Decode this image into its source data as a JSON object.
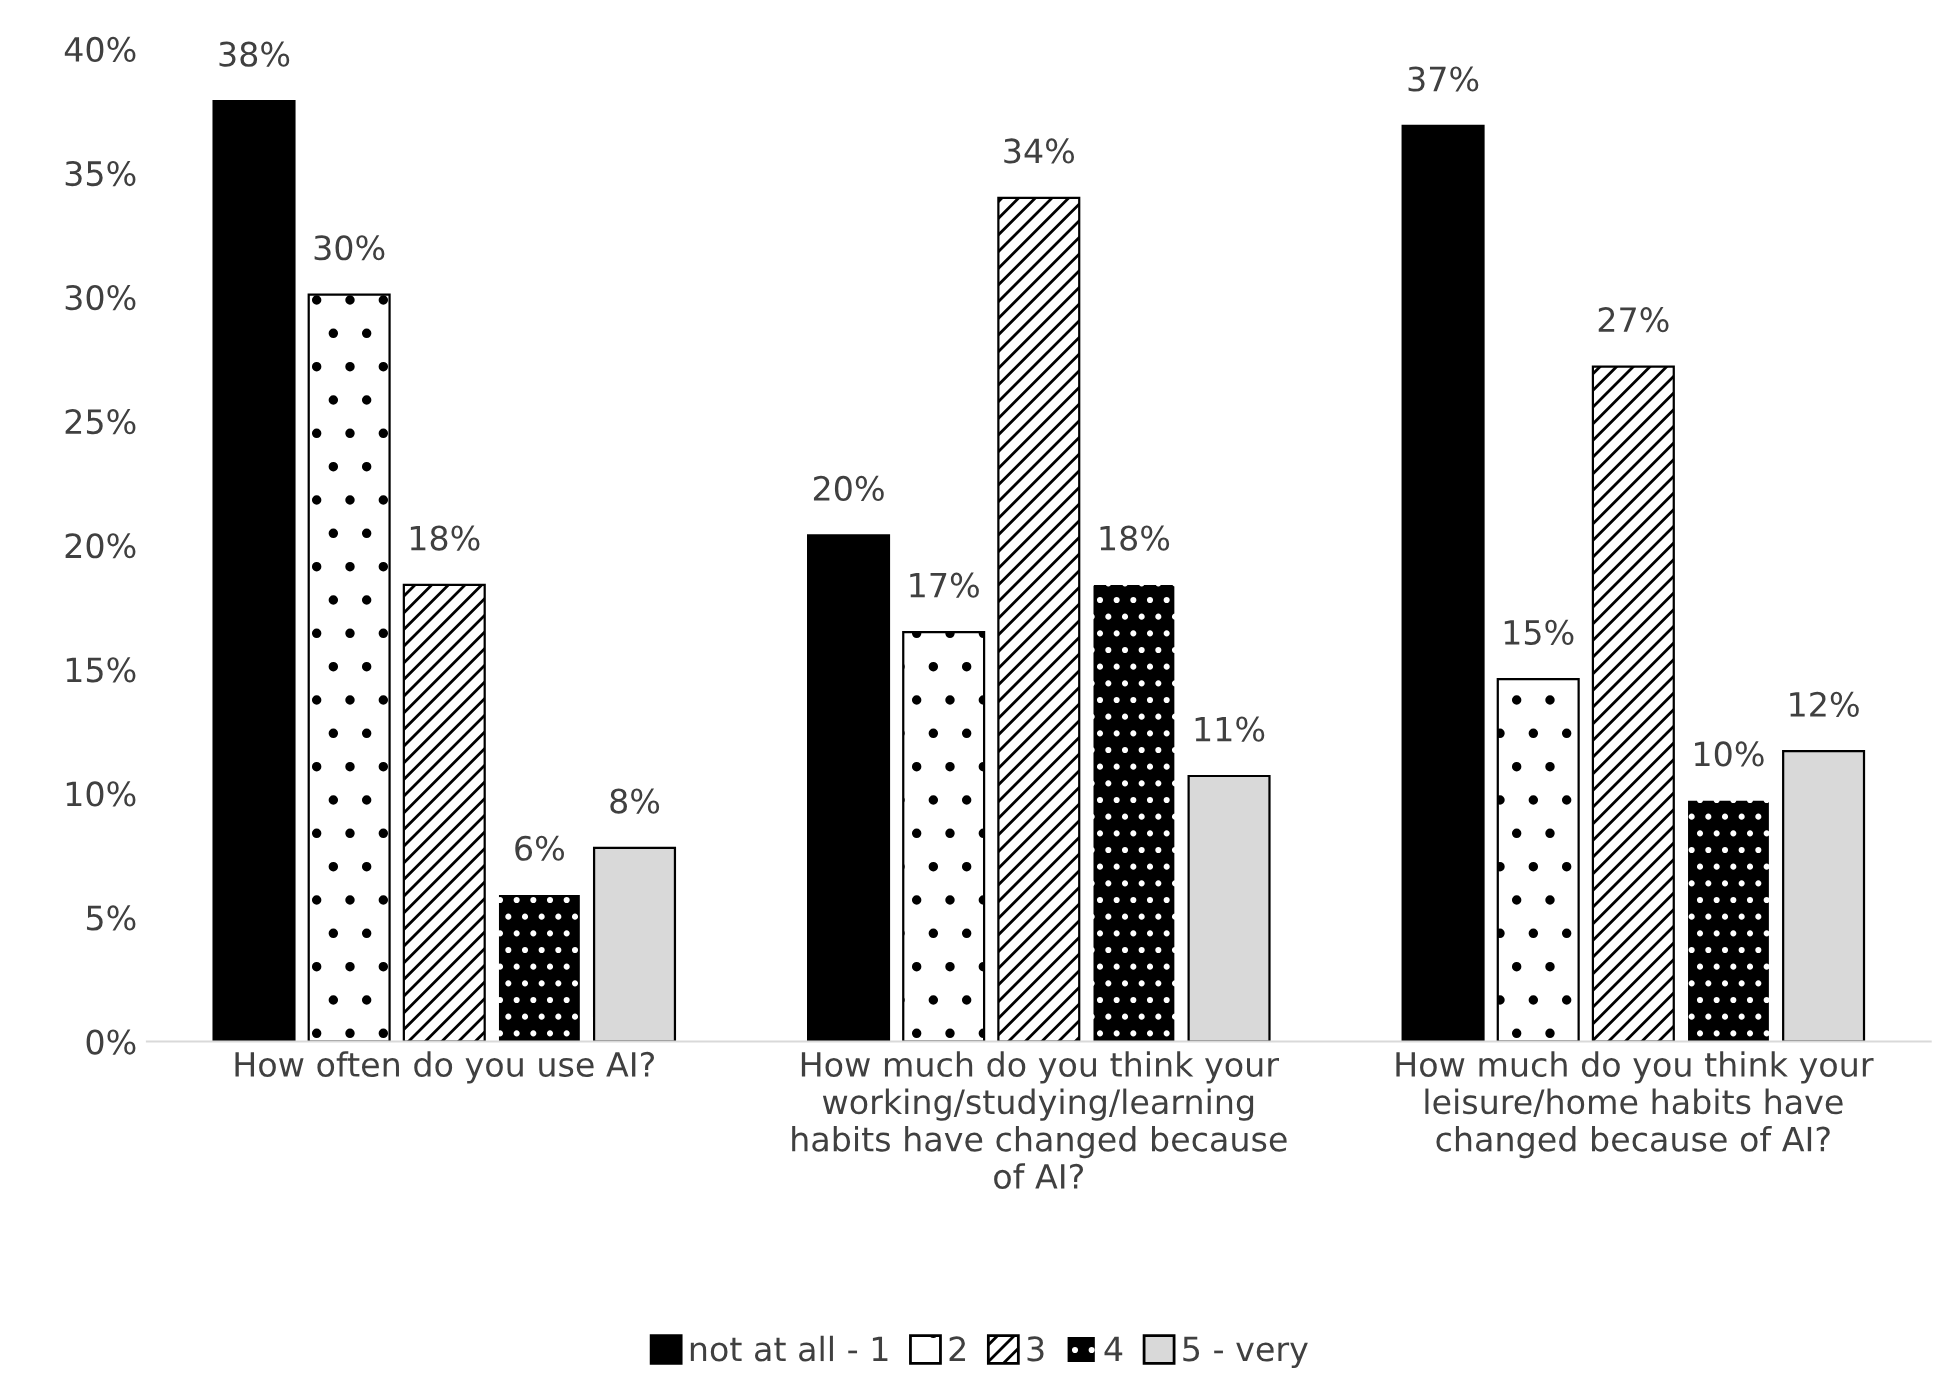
{
  "chart_data": {
    "type": "bar",
    "categories": [
      "How often do you use AI?",
      "How much do you think your working/studying/learning habits have changed because of AI?",
      "How much do you think your leisure/home habits have changed because of AI?"
    ],
    "series": [
      {
        "name": "not at all - 1",
        "color": "#000000",
        "values": [
          37.9,
          20.4,
          36.9
        ],
        "value_labels": [
          "38%",
          "20%",
          "37%"
        ]
      },
      {
        "name": "2",
        "color": "#ffffff",
        "values": [
          30.1,
          16.5,
          14.6
        ],
        "value_labels": [
          "30%",
          "17%",
          "15%"
        ]
      },
      {
        "name": "3",
        "color": "#ffffff",
        "values": [
          18.4,
          34.0,
          27.2
        ],
        "value_labels": [
          "18%",
          "34%",
          "27%"
        ]
      },
      {
        "name": "4",
        "color": "#000000",
        "values": [
          5.9,
          18.4,
          9.7
        ],
        "value_labels": [
          "6%",
          "18%",
          "10%"
        ]
      },
      {
        "name": "5 - very",
        "color": "#d9d9d9",
        "values": [
          7.8,
          10.7,
          11.7
        ],
        "value_labels": [
          "8%",
          "11%",
          "12%"
        ]
      }
    ],
    "ylim": [
      0,
      40
    ],
    "yticks": [
      {
        "value": 0,
        "label": "0%"
      },
      {
        "value": 5,
        "label": "5%"
      },
      {
        "value": 10,
        "label": "10%"
      },
      {
        "value": 15,
        "label": "15%"
      },
      {
        "value": 20,
        "label": "20%"
      },
      {
        "value": 25,
        "label": "25%"
      },
      {
        "value": 30,
        "label": "30%"
      },
      {
        "value": 35,
        "label": "35%"
      },
      {
        "value": 40,
        "label": "40%"
      }
    ],
    "legend": "bottom"
  }
}
